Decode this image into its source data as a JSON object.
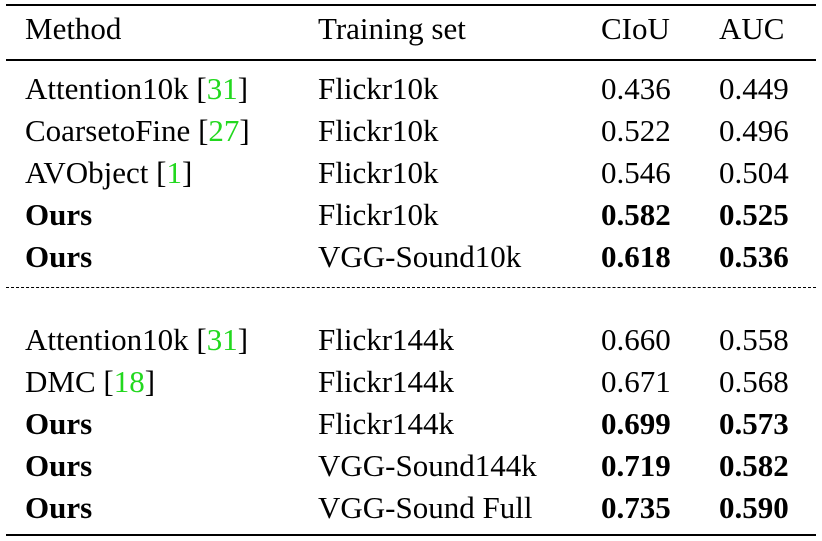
{
  "header": {
    "method": "Method",
    "training_set": "Training set",
    "ciou": "CIoU",
    "auc": "AUC"
  },
  "group1": [
    {
      "method": "Attention10k",
      "cite": "31",
      "training_set": "Flickr10k",
      "ciou": "0.436",
      "auc": "0.449",
      "ours": false,
      "best": false
    },
    {
      "method": "CoarsetoFine",
      "cite": "27",
      "training_set": "Flickr10k",
      "ciou": "0.522",
      "auc": "0.496",
      "ours": false,
      "best": false
    },
    {
      "method": "AVObject",
      "cite": "1",
      "training_set": "Flickr10k",
      "ciou": "0.546",
      "auc": "0.504",
      "ours": false,
      "best": false
    },
    {
      "method": "Ours",
      "cite": "",
      "training_set": "Flickr10k",
      "ciou": "0.582",
      "auc": "0.525",
      "ours": true,
      "best": true
    },
    {
      "method": "Ours",
      "cite": "",
      "training_set": "VGG-Sound10k",
      "ciou": "0.618",
      "auc": "0.536",
      "ours": true,
      "best": true
    }
  ],
  "group2": [
    {
      "method": "Attention10k",
      "cite": "31",
      "training_set": "Flickr144k",
      "ciou": "0.660",
      "auc": "0.558",
      "ours": false,
      "best": false
    },
    {
      "method": "DMC",
      "cite": "18",
      "training_set": "Flickr144k",
      "ciou": "0.671",
      "auc": "0.568",
      "ours": false,
      "best": false
    },
    {
      "method": "Ours",
      "cite": "",
      "training_set": "Flickr144k",
      "ciou": "0.699",
      "auc": "0.573",
      "ours": true,
      "best": true
    },
    {
      "method": "Ours",
      "cite": "",
      "training_set": "VGG-Sound144k",
      "ciou": "0.719",
      "auc": "0.582",
      "ours": true,
      "best": true
    },
    {
      "method": "Ours",
      "cite": "",
      "training_set": "VGG-Sound Full",
      "ciou": "0.735",
      "auc": "0.590",
      "ours": true,
      "best": true
    }
  ]
}
